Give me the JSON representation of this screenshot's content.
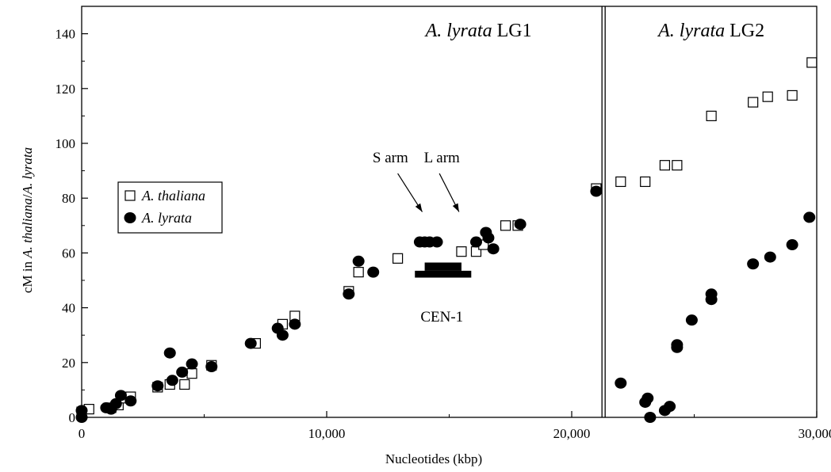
{
  "chart_data": {
    "type": "scatter",
    "xlabel": "Nucleotides (kbp)",
    "ylabel_parts": [
      "cM in ",
      "A. thaliana",
      "/",
      "A. lyrata"
    ],
    "xlim": [
      0,
      30000
    ],
    "ylim": [
      0,
      150
    ],
    "x_ticks": [
      0,
      10000,
      20000,
      30000
    ],
    "x_tick_labels": [
      "0",
      "10,000",
      "20,000",
      "30,000"
    ],
    "y_ticks": [
      0,
      20,
      40,
      60,
      80,
      100,
      120,
      140
    ],
    "y_tick_labels": [
      "0",
      "20",
      "40",
      "60",
      "80",
      "100",
      "120",
      "140"
    ],
    "divider_x": 21300,
    "region_labels": [
      {
        "italic": "A. lyrata",
        "plain": " LG1",
        "x": 16200,
        "y": 139
      },
      {
        "italic": "A. lyrata",
        "plain": " LG2",
        "x": 25700,
        "y": 139
      }
    ],
    "annotations": [
      {
        "text": "S arm",
        "x": 12600,
        "y": 93
      },
      {
        "text": "L arm",
        "x": 14700,
        "y": 93
      },
      {
        "text": "CEN-1",
        "x": 14700,
        "y": 35
      }
    ],
    "arrows": [
      {
        "from": [
          12900,
          89
        ],
        "to": [
          13900,
          75
        ]
      },
      {
        "from": [
          14600,
          89
        ],
        "to": [
          15400,
          75
        ]
      }
    ],
    "centromere": {
      "base": [
        13600,
        15900,
        51,
        53.5
      ],
      "top": [
        14000,
        15500,
        53.5,
        56.5
      ]
    },
    "legend": {
      "placement": "left",
      "entries": [
        "A. thaliana",
        "A. lyrata"
      ]
    },
    "series": [
      {
        "name": "A. thaliana",
        "marker": "open-square",
        "points": [
          [
            0,
            2
          ],
          [
            300,
            3
          ],
          [
            1200,
            3.5
          ],
          [
            1500,
            4.5
          ],
          [
            1600,
            7
          ],
          [
            2000,
            7.5
          ],
          [
            3100,
            11
          ],
          [
            3600,
            12
          ],
          [
            4200,
            12
          ],
          [
            4500,
            16
          ],
          [
            5300,
            19
          ],
          [
            7100,
            27
          ],
          [
            8200,
            34
          ],
          [
            8700,
            37
          ],
          [
            10900,
            46
          ],
          [
            11300,
            53
          ],
          [
            12900,
            58
          ],
          [
            15500,
            60.5
          ],
          [
            16100,
            60.5
          ],
          [
            16400,
            63
          ],
          [
            17300,
            70
          ],
          [
            17800,
            70
          ],
          [
            21000,
            83.5
          ],
          [
            22000,
            86
          ],
          [
            23000,
            86
          ],
          [
            23800,
            92
          ],
          [
            24300,
            92
          ],
          [
            25700,
            110
          ],
          [
            27400,
            115
          ],
          [
            28000,
            117
          ],
          [
            29000,
            117.5
          ],
          [
            29800,
            129.5
          ]
        ]
      },
      {
        "name": "A. lyrata",
        "marker": "filled-circle",
        "points": [
          [
            0,
            0
          ],
          [
            0,
            2.5
          ],
          [
            1000,
            3.5
          ],
          [
            1200,
            3
          ],
          [
            1400,
            5
          ],
          [
            1600,
            8
          ],
          [
            2000,
            6
          ],
          [
            3100,
            11.5
          ],
          [
            3600,
            23.5
          ],
          [
            3700,
            13.5
          ],
          [
            4100,
            16.5
          ],
          [
            4500,
            19.5
          ],
          [
            5300,
            18.5
          ],
          [
            6900,
            27
          ],
          [
            8000,
            32.5
          ],
          [
            8200,
            30
          ],
          [
            8700,
            34
          ],
          [
            10900,
            45
          ],
          [
            11300,
            57
          ],
          [
            11900,
            53
          ],
          [
            13800,
            64
          ],
          [
            14000,
            64
          ],
          [
            14200,
            64
          ],
          [
            14500,
            64
          ],
          [
            16100,
            64
          ],
          [
            16500,
            67.5
          ],
          [
            16600,
            65.5
          ],
          [
            16800,
            61.5
          ],
          [
            17900,
            70.5
          ],
          [
            21000,
            82.5
          ],
          [
            22000,
            12.5
          ],
          [
            23000,
            5.5
          ],
          [
            23100,
            7
          ],
          [
            23200,
            0
          ],
          [
            23800,
            2.5
          ],
          [
            24000,
            4
          ],
          [
            24300,
            25.5
          ],
          [
            24300,
            26.5
          ],
          [
            24900,
            35.5
          ],
          [
            25700,
            45
          ],
          [
            25700,
            43
          ],
          [
            27400,
            56
          ],
          [
            28100,
            58.5
          ],
          [
            29000,
            63
          ],
          [
            29700,
            73
          ]
        ]
      }
    ]
  }
}
